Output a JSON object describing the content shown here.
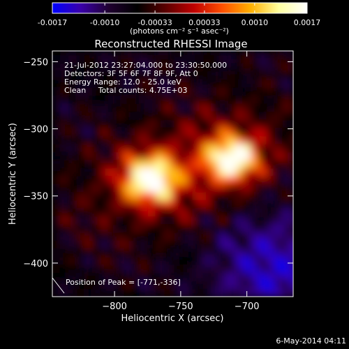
{
  "chart_data": {
    "type": "heatmap",
    "title": "Reconstructed RHESSI Image",
    "xlabel": "Heliocentric X (arcsec)",
    "ylabel": "Heliocentric Y (arcsec)",
    "xlim": [
      -847,
      -665
    ],
    "ylim": [
      -425,
      -242
    ],
    "x_ticks": [
      -800,
      -750,
      -700
    ],
    "y_ticks": [
      -250,
      -300,
      -350,
      -400
    ],
    "colorbar": {
      "ticks": [
        "-0.0017",
        "-0.0010",
        "-0.00033",
        "0.00033",
        "0.0010",
        "0.0017"
      ],
      "range": [
        -0.0017,
        0.0017
      ],
      "unit_label": "(photons cm⁻² s⁻¹ asec⁻²)",
      "colormap": [
        "#0000ff",
        "#3a00aa",
        "#200030",
        "#000000",
        "#5a0000",
        "#c00000",
        "#ff5000",
        "#ffb000",
        "#ffffa0",
        "#ffffff"
      ]
    },
    "sources": [
      {
        "x": -773,
        "y": -337,
        "peak": 1.0
      },
      {
        "x": -711,
        "y": -322,
        "peak": 0.92
      }
    ],
    "peak_position": [
      -771,
      -336
    ],
    "annotations": [
      "21-Jul-2012 23:27:04.000 to 23:30:50.000",
      "Detectors: 3F 5F 6F 7F 8F 9F, Att 0",
      "Energy Range: 12.0 - 25.0 keV",
      "Clean     Total counts: 4.75E+03",
      "Position of Peak = [-771,-336]"
    ],
    "timestamp": "6-May-2014 04:11"
  }
}
